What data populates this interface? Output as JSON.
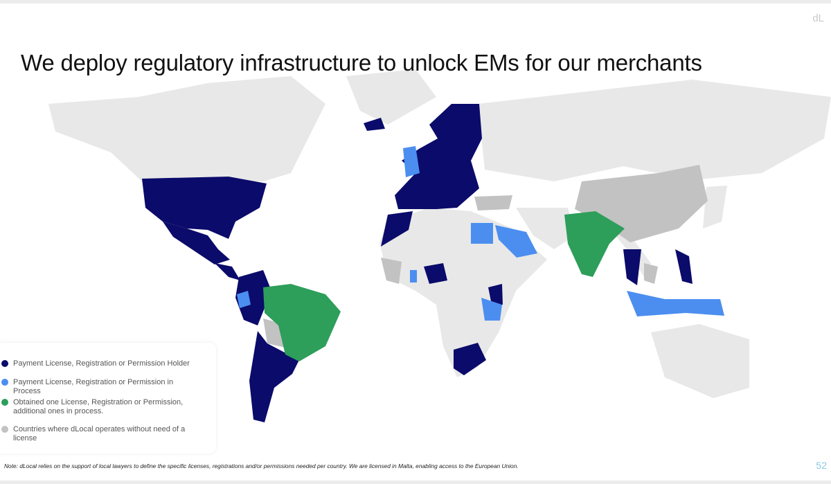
{
  "header": {
    "title": "We deploy regulatory infrastructure to unlock EMs for our merchants",
    "logo": "dL"
  },
  "legend": {
    "items": [
      {
        "label": "Payment License, Registration or Permission Holder",
        "color": "#0b0b6b"
      },
      {
        "label": "Payment License, Registration or Permission in Process",
        "color": "#4b8ef0"
      },
      {
        "label": "Obtained one License, Registration or Permission, additional ones in process.",
        "color": "#2e9e5b"
      },
      {
        "label": "Countries where dLocal operates without need of a license",
        "color": "#c2c2c2"
      }
    ]
  },
  "footer": {
    "note": "Note: dLocal relies on the support of local lawyers to define the specific licenses, registrations and/or permissions needed per country. We are licensed in Malta, enabling access to the European Union.",
    "page_number": "52"
  }
}
